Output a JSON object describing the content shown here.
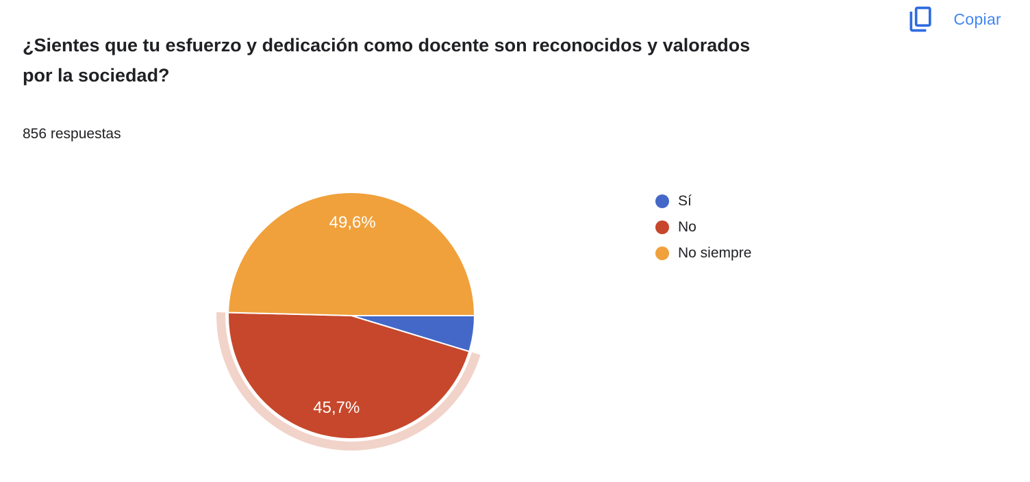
{
  "header": {
    "title": "¿Sientes que tu esfuerzo y dedicación como docente son reconocidos y valorados por la sociedad?",
    "title_lines": [
      "¿Sientes que tu esfuerzo y dedicación como docente son reconocidos y valorados",
      "por la sociedad?"
    ],
    "responses_count": "856 respuestas",
    "copy_label": "Copiar",
    "copy_icon": "content-copy-icon",
    "copy_icon_color": "#2E6BE0",
    "copy_label_color": "#4285F4",
    "title_color": "#202124"
  },
  "chart_data": {
    "type": "pie",
    "title": "¿Sientes que tu esfuerzo y dedicación como docente son reconocidos y valorados por la sociedad?",
    "subtitle": "856 respuestas",
    "total_responses": 856,
    "legend_position": "right",
    "start_angle_deg": 0,
    "direction": "clockwise",
    "slices": [
      {
        "label": "Sí",
        "value_pct": 4.7,
        "display_label": "",
        "color": "#4368C8",
        "selected": false
      },
      {
        "label": "No",
        "value_pct": 45.7,
        "display_label": "45,7%",
        "color": "#C6472B",
        "selected": true,
        "halo_color": "#F1D3C9"
      },
      {
        "label": "No siempre",
        "value_pct": 49.6,
        "display_label": "49,6%",
        "color": "#F0A13C",
        "selected": false
      }
    ]
  }
}
